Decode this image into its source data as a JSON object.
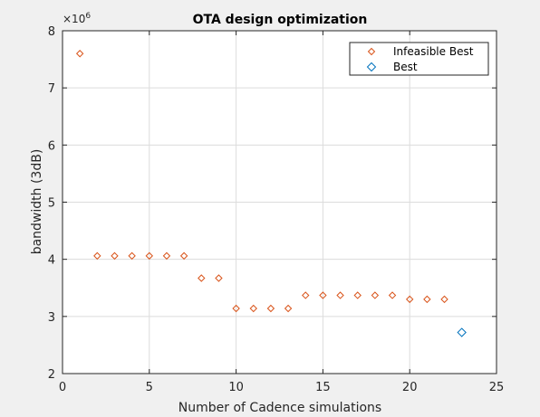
{
  "chart_data": {
    "type": "scatter",
    "title": "OTA design optimization",
    "xlabel": "Number of Cadence simulations",
    "ylabel": "bandwidth (3dB)",
    "xlim": [
      0,
      25
    ],
    "ylim": [
      2000000,
      8000000
    ],
    "xticks": [
      0,
      5,
      10,
      15,
      20,
      25
    ],
    "yticks": [
      2,
      3,
      4,
      5,
      6,
      7,
      8
    ],
    "y_exponent_label": "×10",
    "y_exponent_power": "6",
    "grid": true,
    "legend_position": "top-right",
    "series": [
      {
        "name": "Infeasible Best",
        "color": "#d95319",
        "marker": "diamond",
        "x": [
          1,
          2,
          3,
          4,
          5,
          6,
          7,
          8,
          9,
          10,
          11,
          12,
          13,
          14,
          15,
          16,
          17,
          18,
          19,
          20,
          21,
          22
        ],
        "y": [
          7600000,
          4060000,
          4060000,
          4060000,
          4060000,
          4060000,
          4060000,
          3670000,
          3670000,
          3140000,
          3140000,
          3140000,
          3140000,
          3370000,
          3370000,
          3370000,
          3370000,
          3370000,
          3370000,
          3300000,
          3300000,
          3300000
        ]
      },
      {
        "name": "Best",
        "color": "#0072bd",
        "marker": "diamond",
        "x": [
          23
        ],
        "y": [
          2720000
        ]
      }
    ]
  }
}
